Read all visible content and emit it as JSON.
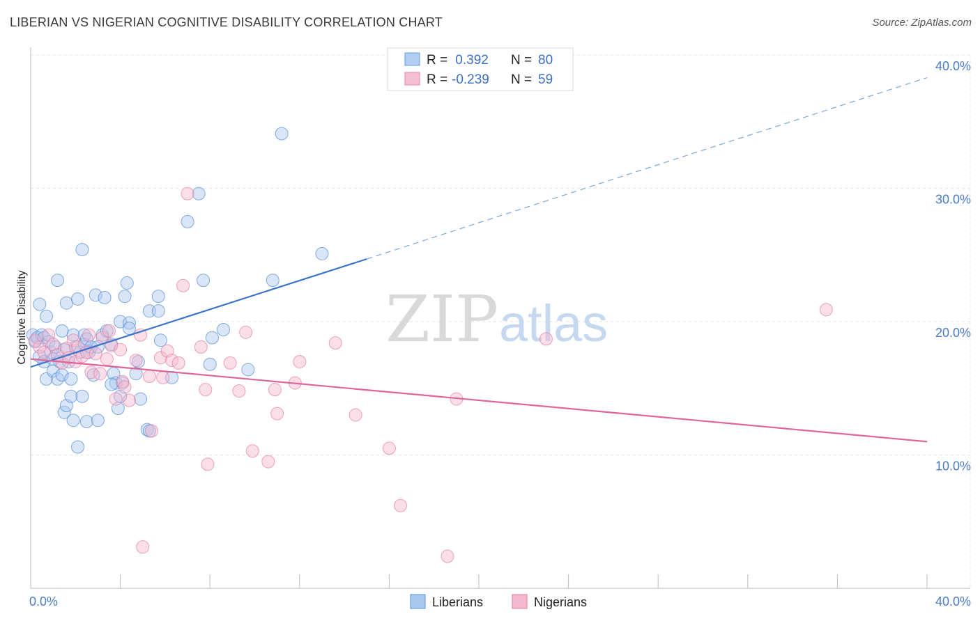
{
  "title": "LIBERIAN VS NIGERIAN COGNITIVE DISABILITY CORRELATION CHART",
  "source": "Source: ZipAtlas.com",
  "watermark": {
    "zip": "ZIP",
    "atlas": "atlas"
  },
  "colors": {
    "liberians": "#5b8fd6",
    "nigerians": "#e57aa3",
    "liberians_fill": "#a9c8f0",
    "nigerians_fill": "#f5b9cf",
    "tick_text": "#4a7bc8"
  },
  "legend": {
    "liberians": {
      "r_label": "R =",
      "r_value": " 0.392",
      "n_label": "N =",
      "n_value": "80"
    },
    "nigerians": {
      "r_label": "R =",
      "r_value": "-0.239",
      "n_label": "N =",
      "n_value": "59"
    }
  },
  "chart_data": {
    "type": "scatter",
    "title": "LIBERIAN VS NIGERIAN COGNITIVE DISABILITY CORRELATION CHART",
    "xlabel": "",
    "ylabel": "Cognitive Disability",
    "xlim": [
      0,
      40
    ],
    "ylim": [
      0,
      40
    ],
    "x_tick_labels": [
      "0.0%",
      "40.0%"
    ],
    "y_tick_labels": [
      "10.0%",
      "20.0%",
      "30.0%",
      "40.0%"
    ],
    "y_tick_values": [
      10,
      20,
      30,
      40
    ],
    "grid": true,
    "legend_position": "top-center",
    "series": [
      {
        "name": "Liberians",
        "trendline": {
          "x": [
            0,
            15
          ],
          "y": [
            16.6,
            24.7
          ],
          "extended_x": [
            15,
            40
          ],
          "extended_y": [
            24.7,
            38.3
          ]
        },
        "points": [
          [
            0.1,
            19.0
          ],
          [
            0.2,
            18.5
          ],
          [
            0.3,
            18.8
          ],
          [
            0.4,
            21.3
          ],
          [
            0.4,
            17.4
          ],
          [
            0.5,
            19.0
          ],
          [
            0.6,
            17.0
          ],
          [
            0.6,
            18.8
          ],
          [
            0.7,
            20.4
          ],
          [
            0.7,
            15.7
          ],
          [
            0.8,
            18.5
          ],
          [
            0.9,
            17.7
          ],
          [
            1.0,
            16.3
          ],
          [
            1.0,
            17.2
          ],
          [
            1.1,
            18.1
          ],
          [
            1.2,
            15.7
          ],
          [
            1.2,
            23.1
          ],
          [
            1.3,
            17.0
          ],
          [
            1.4,
            19.3
          ],
          [
            1.4,
            16.0
          ],
          [
            1.5,
            17.9
          ],
          [
            1.5,
            13.2
          ],
          [
            1.6,
            21.4
          ],
          [
            1.6,
            13.7
          ],
          [
            1.7,
            17.0
          ],
          [
            1.8,
            15.7
          ],
          [
            1.8,
            14.4
          ],
          [
            1.9,
            19.0
          ],
          [
            1.9,
            12.6
          ],
          [
            2.0,
            18.1
          ],
          [
            2.1,
            10.6
          ],
          [
            2.1,
            21.7
          ],
          [
            2.2,
            17.7
          ],
          [
            2.3,
            25.4
          ],
          [
            2.3,
            14.4
          ],
          [
            2.4,
            19.0
          ],
          [
            2.4,
            18.3
          ],
          [
            2.5,
            12.5
          ],
          [
            2.5,
            18.7
          ],
          [
            2.6,
            17.7
          ],
          [
            2.7,
            18.1
          ],
          [
            2.8,
            16.0
          ],
          [
            2.9,
            22.0
          ],
          [
            3.0,
            18.1
          ],
          [
            3.0,
            12.6
          ],
          [
            3.2,
            19.0
          ],
          [
            3.3,
            21.8
          ],
          [
            3.4,
            19.3
          ],
          [
            3.6,
            18.3
          ],
          [
            3.7,
            16.1
          ],
          [
            3.8,
            15.4
          ],
          [
            3.9,
            13.5
          ],
          [
            4.0,
            20.0
          ],
          [
            4.0,
            14.4
          ],
          [
            4.1,
            15.4
          ],
          [
            4.2,
            21.9
          ],
          [
            4.3,
            22.9
          ],
          [
            4.4,
            19.9
          ],
          [
            4.7,
            16.1
          ],
          [
            4.8,
            17.0
          ],
          [
            4.9,
            14.2
          ],
          [
            5.2,
            11.9
          ],
          [
            5.3,
            11.8
          ],
          [
            5.3,
            20.8
          ],
          [
            5.7,
            21.9
          ],
          [
            5.7,
            20.8
          ],
          [
            5.8,
            18.6
          ],
          [
            6.3,
            15.8
          ],
          [
            7.0,
            27.5
          ],
          [
            7.5,
            29.6
          ],
          [
            7.7,
            23.1
          ],
          [
            8.0,
            16.8
          ],
          [
            8.1,
            18.8
          ],
          [
            8.6,
            19.4
          ],
          [
            9.7,
            16.4
          ],
          [
            10.8,
            23.1
          ],
          [
            11.2,
            34.1
          ],
          [
            13.0,
            25.1
          ],
          [
            4.4,
            19.5
          ],
          [
            3.6,
            15.3
          ]
        ]
      },
      {
        "name": "Nigerians",
        "trendline": {
          "x": [
            0,
            40
          ],
          "y": [
            17.2,
            11.0
          ]
        },
        "points": [
          [
            0.2,
            18.6
          ],
          [
            0.4,
            18.1
          ],
          [
            0.6,
            17.7
          ],
          [
            0.8,
            19.0
          ],
          [
            1.0,
            18.3
          ],
          [
            1.2,
            17.5
          ],
          [
            1.4,
            16.9
          ],
          [
            1.6,
            18.0
          ],
          [
            1.7,
            17.3
          ],
          [
            1.9,
            18.6
          ],
          [
            2.0,
            17.0
          ],
          [
            2.1,
            18.1
          ],
          [
            2.3,
            17.4
          ],
          [
            2.5,
            17.7
          ],
          [
            2.6,
            19.0
          ],
          [
            2.7,
            16.2
          ],
          [
            2.9,
            17.6
          ],
          [
            3.1,
            16.1
          ],
          [
            3.2,
            18.8
          ],
          [
            3.4,
            17.2
          ],
          [
            3.5,
            19.3
          ],
          [
            3.6,
            18.2
          ],
          [
            3.8,
            14.2
          ],
          [
            4.0,
            17.9
          ],
          [
            4.1,
            15.5
          ],
          [
            4.2,
            15.1
          ],
          [
            4.4,
            14.1
          ],
          [
            4.7,
            17.1
          ],
          [
            4.9,
            19.0
          ],
          [
            5.0,
            3.1
          ],
          [
            5.3,
            15.9
          ],
          [
            5.4,
            11.8
          ],
          [
            5.8,
            17.3
          ],
          [
            5.9,
            15.8
          ],
          [
            6.1,
            17.8
          ],
          [
            6.3,
            17.1
          ],
          [
            6.6,
            16.9
          ],
          [
            6.8,
            22.7
          ],
          [
            7.0,
            29.6
          ],
          [
            7.6,
            18.1
          ],
          [
            7.8,
            14.9
          ],
          [
            7.9,
            9.3
          ],
          [
            8.9,
            16.9
          ],
          [
            9.3,
            14.8
          ],
          [
            9.6,
            19.2
          ],
          [
            9.9,
            10.3
          ],
          [
            10.6,
            9.5
          ],
          [
            10.9,
            14.9
          ],
          [
            11.0,
            13.1
          ],
          [
            11.8,
            15.4
          ],
          [
            12.0,
            17.0
          ],
          [
            13.6,
            18.4
          ],
          [
            14.5,
            13.0
          ],
          [
            16.0,
            10.5
          ],
          [
            16.5,
            6.2
          ],
          [
            18.6,
            2.4
          ],
          [
            19.0,
            14.2
          ],
          [
            23.0,
            18.7
          ],
          [
            35.5,
            20.9
          ]
        ]
      }
    ]
  },
  "bottom_legend": {
    "liberians": "Liberians",
    "nigerians": "Nigerians"
  }
}
